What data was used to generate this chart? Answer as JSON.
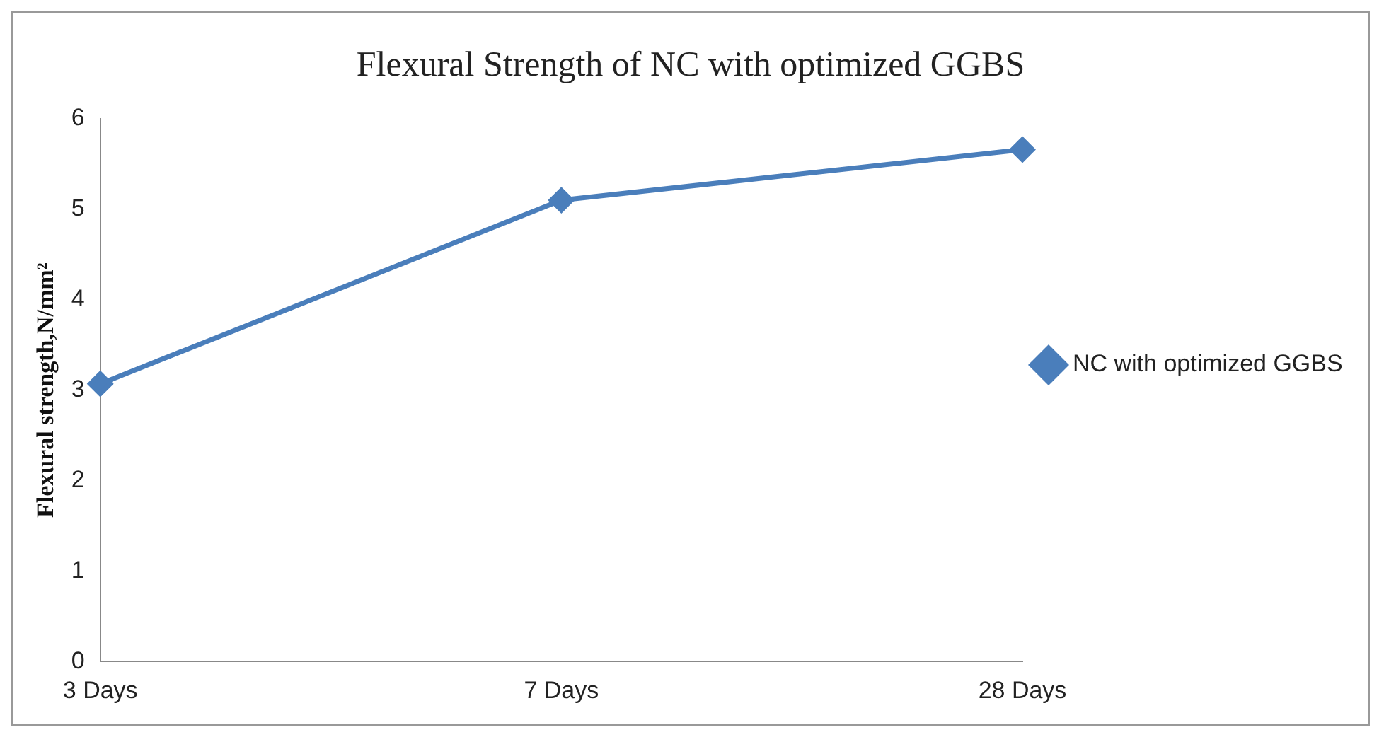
{
  "chart_data": {
    "type": "line",
    "title": "Flexural Strength of NC with optimized GGBS",
    "ylabel": "Flexural strength,N/mm²",
    "categories": [
      "3 Days",
      "7 Days",
      "28 Days"
    ],
    "series": [
      {
        "name": "NC with optimized GGBS",
        "color": "#4a7ebb",
        "values": [
          3.07,
          5.1,
          5.66
        ]
      }
    ],
    "ylim": [
      0,
      6
    ],
    "yticks": [
      0,
      1,
      2,
      3,
      4,
      5,
      6
    ],
    "grid": false,
    "legend": "right",
    "marker": "diamond",
    "line_style": "solid"
  }
}
